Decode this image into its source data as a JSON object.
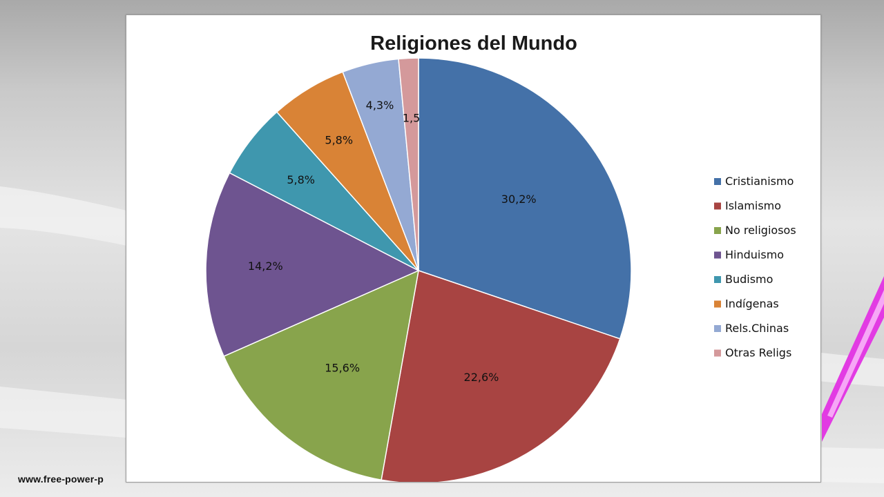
{
  "footer": {
    "watermark": "www.free-power-p"
  },
  "colors": {
    "series": [
      "#4471a8",
      "#a84442",
      "#88a44c",
      "#6e5490",
      "#3f97ae",
      "#d98336",
      "#94a9d3",
      "#d4999b"
    ]
  },
  "chart_data": {
    "type": "pie",
    "title": "Religiones del Mundo",
    "legend_position": "right",
    "categories": [
      "Cristianismo",
      "Islamismo",
      "No religiosos",
      "Hinduismo",
      "Budismo",
      "Indígenas",
      "Rels.Chinas",
      "Otras Religs"
    ],
    "values": [
      30.2,
      22.6,
      15.6,
      14.2,
      5.8,
      5.8,
      4.3,
      1.5
    ],
    "data_labels": [
      "30,2%",
      "22,6%",
      "15,6%",
      "14,2%",
      "5,8%",
      "5,8%",
      "4,3%",
      "1,5"
    ]
  }
}
